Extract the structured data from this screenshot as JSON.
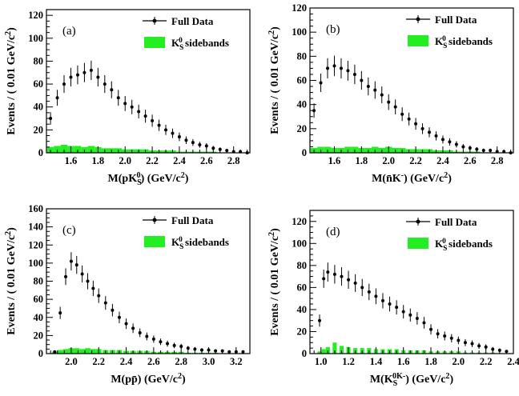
{
  "legend": {
    "data_label": "Full Data",
    "sideband_label": "K_S^0 sidebands"
  },
  "colors": {
    "data": "#000000",
    "sideband": "#22ee22",
    "frame": "#000000"
  },
  "chart_data": [
    {
      "type": "scatter",
      "panel": "(a)",
      "xlabel": "M(pK_S^0) (GeV/c^2)",
      "ylabel": "Events / ( 0.01 GeV/c^2)",
      "xlim": [
        1.42,
        2.92
      ],
      "ylim": [
        0,
        125
      ],
      "x_ticks": [
        1.6,
        1.8,
        2.0,
        2.2,
        2.4,
        2.6,
        2.8
      ],
      "y_ticks": [
        0,
        20,
        40,
        60,
        80,
        100,
        120
      ],
      "series": [
        {
          "name": "Full Data",
          "kind": "points_with_errors",
          "x": [
            1.45,
            1.5,
            1.55,
            1.6,
            1.65,
            1.7,
            1.75,
            1.8,
            1.85,
            1.9,
            1.95,
            2.0,
            2.05,
            2.1,
            2.15,
            2.2,
            2.25,
            2.3,
            2.35,
            2.4,
            2.45,
            2.5,
            2.55,
            2.6,
            2.65,
            2.7,
            2.75,
            2.8,
            2.85,
            2.9
          ],
          "y": [
            30,
            48,
            60,
            66,
            68,
            70,
            72,
            66,
            60,
            55,
            48,
            43,
            40,
            36,
            32,
            28,
            24,
            20,
            17,
            14,
            11,
            9,
            7,
            6,
            4,
            3,
            2,
            1,
            1,
            0
          ]
        },
        {
          "name": "K_S^0 sidebands",
          "kind": "filled_histogram",
          "x": [
            1.45,
            1.5,
            1.55,
            1.6,
            1.65,
            1.7,
            1.75,
            1.8,
            1.85,
            1.9,
            1.95,
            2.0,
            2.05,
            2.1,
            2.15,
            2.2,
            2.25,
            2.3,
            2.35,
            2.4,
            2.45,
            2.5,
            2.55,
            2.6,
            2.65,
            2.7,
            2.75,
            2.8,
            2.85,
            2.9
          ],
          "y": [
            5,
            6,
            7,
            6,
            6,
            5,
            6,
            5,
            4,
            4,
            4,
            3,
            3,
            3,
            3,
            2,
            2,
            2,
            2,
            1,
            1,
            1,
            1,
            1,
            1,
            0,
            0,
            0,
            0,
            0
          ]
        }
      ]
    },
    {
      "type": "scatter",
      "panel": "(b)",
      "xlabel": "M(n̄K^-) (GeV/c^2)",
      "ylabel": "Events / ( 0.01 GeV/c^2)",
      "xlim": [
        1.42,
        2.92
      ],
      "ylim": [
        0,
        120
      ],
      "x_ticks": [
        1.6,
        1.8,
        2.0,
        2.2,
        2.4,
        2.6,
        2.8
      ],
      "y_ticks": [
        0,
        20,
        40,
        60,
        80,
        100,
        120
      ],
      "series": [
        {
          "name": "Full Data",
          "kind": "points_with_errors",
          "x": [
            1.45,
            1.5,
            1.55,
            1.6,
            1.65,
            1.7,
            1.75,
            1.8,
            1.85,
            1.9,
            1.95,
            2.0,
            2.05,
            2.1,
            2.15,
            2.2,
            2.25,
            2.3,
            2.35,
            2.4,
            2.45,
            2.5,
            2.55,
            2.6,
            2.65,
            2.7,
            2.75,
            2.8,
            2.85,
            2.9
          ],
          "y": [
            35,
            58,
            70,
            72,
            70,
            68,
            65,
            60,
            55,
            52,
            48,
            42,
            38,
            32,
            28,
            24,
            20,
            17,
            14,
            11,
            9,
            7,
            5,
            4,
            3,
            2,
            2,
            1,
            1,
            0
          ]
        },
        {
          "name": "K_S^0 sidebands",
          "kind": "filled_histogram",
          "x": [
            1.45,
            1.5,
            1.55,
            1.6,
            1.65,
            1.7,
            1.75,
            1.8,
            1.85,
            1.9,
            1.95,
            2.0,
            2.05,
            2.1,
            2.15,
            2.2,
            2.25,
            2.3,
            2.35,
            2.4,
            2.45,
            2.5,
            2.55,
            2.6,
            2.65,
            2.7,
            2.75,
            2.8,
            2.85,
            2.9
          ],
          "y": [
            4,
            5,
            5,
            4,
            4,
            5,
            5,
            4,
            4,
            5,
            4,
            5,
            4,
            4,
            3,
            3,
            3,
            3,
            2,
            2,
            2,
            1,
            1,
            1,
            1,
            0,
            0,
            0,
            0,
            0
          ]
        }
      ]
    },
    {
      "type": "scatter",
      "panel": "(c)",
      "xlabel": "M(pp̄) (GeV/c^2)",
      "ylabel": "Events / ( 0.01 GeV/c^2)",
      "xlim": [
        1.82,
        3.3
      ],
      "ylim": [
        0,
        160
      ],
      "x_ticks": [
        2.0,
        2.2,
        2.4,
        2.6,
        2.8,
        3.0,
        3.2
      ],
      "y_ticks": [
        0,
        20,
        40,
        60,
        80,
        100,
        120,
        140,
        160
      ],
      "series": [
        {
          "name": "Full Data",
          "kind": "points_with_errors",
          "x": [
            1.88,
            1.92,
            1.96,
            2.0,
            2.04,
            2.08,
            2.12,
            2.16,
            2.2,
            2.25,
            2.3,
            2.35,
            2.4,
            2.45,
            2.5,
            2.55,
            2.6,
            2.65,
            2.7,
            2.75,
            2.8,
            2.85,
            2.9,
            2.95,
            3.0,
            3.05,
            3.1,
            3.15,
            3.2,
            3.25
          ],
          "y": [
            2,
            45,
            85,
            102,
            98,
            88,
            80,
            72,
            64,
            56,
            48,
            40,
            33,
            28,
            23,
            19,
            16,
            13,
            11,
            9,
            8,
            6,
            5,
            4,
            4,
            3,
            3,
            2,
            2,
            2
          ]
        },
        {
          "name": "K_S^0 sidebands",
          "kind": "filled_histogram",
          "x": [
            1.88,
            1.92,
            1.96,
            2.0,
            2.04,
            2.08,
            2.12,
            2.16,
            2.2,
            2.25,
            2.3,
            2.35,
            2.4,
            2.45,
            2.5,
            2.55,
            2.6,
            2.65,
            2.7,
            2.75,
            2.8,
            2.85,
            2.9,
            2.95,
            3.0,
            3.05,
            3.1,
            3.15,
            3.2,
            3.25
          ],
          "y": [
            2,
            4,
            5,
            6,
            6,
            5,
            6,
            5,
            5,
            4,
            4,
            4,
            3,
            3,
            3,
            3,
            2,
            2,
            2,
            2,
            2,
            1,
            1,
            1,
            1,
            1,
            0,
            0,
            0,
            0
          ]
        }
      ]
    },
    {
      "type": "scatter",
      "panel": "(d)",
      "xlabel": "M(K_S^0K^-) (GeV/c^2)",
      "ylabel": "Events / ( 0.01 GeV/c^2)",
      "xlim": [
        0.92,
        2.4
      ],
      "ylim": [
        0,
        130
      ],
      "x_ticks": [
        1.0,
        1.2,
        1.4,
        1.6,
        1.8,
        2.0,
        2.2,
        2.4
      ],
      "y_ticks": [
        0,
        20,
        40,
        60,
        80,
        100,
        120
      ],
      "series": [
        {
          "name": "Full Data",
          "kind": "points_with_errors",
          "x": [
            0.99,
            1.02,
            1.05,
            1.1,
            1.15,
            1.2,
            1.25,
            1.3,
            1.35,
            1.4,
            1.45,
            1.5,
            1.55,
            1.6,
            1.65,
            1.7,
            1.75,
            1.8,
            1.85,
            1.9,
            1.95,
            2.0,
            2.05,
            2.1,
            2.15,
            2.2,
            2.25,
            2.3,
            2.35
          ],
          "y": [
            30,
            68,
            74,
            72,
            70,
            67,
            64,
            60,
            56,
            52,
            48,
            45,
            42,
            38,
            35,
            32,
            28,
            22,
            18,
            16,
            14,
            12,
            10,
            9,
            7,
            6,
            4,
            3,
            2
          ]
        },
        {
          "name": "K_S^0 sidebands",
          "kind": "filled_histogram",
          "x": [
            0.99,
            1.02,
            1.05,
            1.1,
            1.15,
            1.2,
            1.25,
            1.3,
            1.35,
            1.4,
            1.45,
            1.5,
            1.55,
            1.6,
            1.65,
            1.7,
            1.75,
            1.8,
            1.85,
            1.9,
            1.95,
            2.0,
            2.05,
            2.1,
            2.15,
            2.2,
            2.25,
            2.3,
            2.35
          ],
          "y": [
            2,
            4,
            6,
            10,
            7,
            6,
            5,
            5,
            5,
            4,
            4,
            4,
            4,
            3,
            3,
            3,
            3,
            2,
            2,
            2,
            2,
            2,
            1,
            1,
            1,
            1,
            1,
            0,
            0
          ]
        }
      ]
    }
  ]
}
